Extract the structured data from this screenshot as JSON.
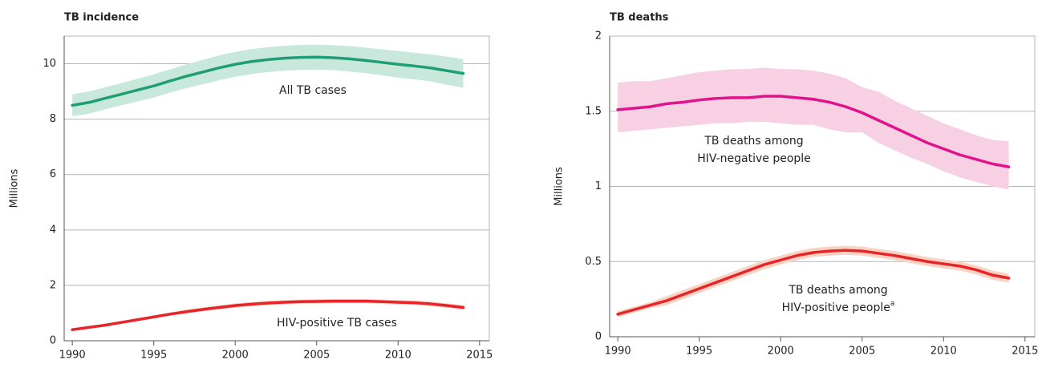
{
  "chart_data": [
    {
      "type": "line",
      "title": "TB incidence",
      "y_label": "Millions",
      "x": [
        1990,
        1991,
        1992,
        1993,
        1994,
        1995,
        1996,
        1997,
        1998,
        1999,
        2000,
        2001,
        2002,
        2003,
        2004,
        2005,
        2006,
        2007,
        2008,
        2009,
        2010,
        2011,
        2012,
        2013,
        2014
      ],
      "xlim": [
        1989.5,
        2015.6
      ],
      "xticks": [
        1990,
        1995,
        2000,
        2005,
        2010,
        2015
      ],
      "ylim": [
        0,
        11
      ],
      "yticks": [
        0,
        2,
        4,
        6,
        8,
        10
      ],
      "grid": true,
      "series": [
        {
          "name": "All TB cases",
          "color": "#1f9e76",
          "band_color": "#c9e8dc",
          "values": [
            8.5,
            8.6,
            8.75,
            8.9,
            9.05,
            9.2,
            9.38,
            9.55,
            9.7,
            9.85,
            9.98,
            10.08,
            10.15,
            10.2,
            10.23,
            10.24,
            10.22,
            10.18,
            10.12,
            10.05,
            9.98,
            9.92,
            9.85,
            9.75,
            9.65
          ],
          "upper": [
            8.9,
            9.0,
            9.15,
            9.3,
            9.46,
            9.62,
            9.8,
            9.98,
            10.14,
            10.3,
            10.43,
            10.53,
            10.6,
            10.65,
            10.68,
            10.69,
            10.67,
            10.64,
            10.58,
            10.52,
            10.46,
            10.4,
            10.34,
            10.26,
            10.17
          ],
          "lower": [
            8.1,
            8.2,
            8.35,
            8.5,
            8.64,
            8.78,
            8.96,
            9.12,
            9.26,
            9.4,
            9.53,
            9.63,
            9.7,
            9.75,
            9.78,
            9.79,
            9.77,
            9.72,
            9.66,
            9.58,
            9.5,
            9.44,
            9.36,
            9.24,
            9.13
          ]
        },
        {
          "name": "HIV-positive TB cases",
          "color": "#e8232a",
          "band_color": "#f9d3c2",
          "values": [
            0.4,
            0.48,
            0.56,
            0.66,
            0.76,
            0.86,
            0.96,
            1.05,
            1.13,
            1.2,
            1.27,
            1.32,
            1.36,
            1.39,
            1.41,
            1.42,
            1.43,
            1.43,
            1.43,
            1.41,
            1.39,
            1.37,
            1.33,
            1.27,
            1.2
          ],
          "upper": [
            0.44,
            0.52,
            0.61,
            0.71,
            0.81,
            0.92,
            1.02,
            1.12,
            1.2,
            1.28,
            1.35,
            1.4,
            1.44,
            1.47,
            1.49,
            1.5,
            1.51,
            1.51,
            1.51,
            1.49,
            1.47,
            1.45,
            1.41,
            1.35,
            1.28
          ],
          "lower": [
            0.36,
            0.44,
            0.51,
            0.61,
            0.71,
            0.8,
            0.9,
            0.98,
            1.06,
            1.12,
            1.19,
            1.24,
            1.28,
            1.31,
            1.33,
            1.34,
            1.35,
            1.35,
            1.35,
            1.33,
            1.31,
            1.29,
            1.25,
            1.19,
            1.12
          ]
        }
      ],
      "annotations": [
        [
          "All TB cases"
        ],
        [
          "HIV-positive TB cases"
        ]
      ]
    },
    {
      "type": "line",
      "title": "TB deaths",
      "y_label": "Millions",
      "x": [
        1990,
        1991,
        1992,
        1993,
        1994,
        1995,
        1996,
        1997,
        1998,
        1999,
        2000,
        2001,
        2002,
        2003,
        2004,
        2005,
        2006,
        2007,
        2008,
        2009,
        2010,
        2011,
        2012,
        2013,
        2014
      ],
      "xlim": [
        1989.5,
        2015.6
      ],
      "xticks": [
        1990,
        1995,
        2000,
        2005,
        2010,
        2015
      ],
      "ylim": [
        0,
        2
      ],
      "yticks": [
        0,
        0.5,
        1,
        1.5,
        2
      ],
      "grid": true,
      "series": [
        {
          "name": "TB deaths among HIV-negative people",
          "color": "#e0138c",
          "band_color": "#f8d0e3",
          "values": [
            1.51,
            1.52,
            1.53,
            1.55,
            1.56,
            1.575,
            1.585,
            1.59,
            1.59,
            1.6,
            1.6,
            1.59,
            1.58,
            1.56,
            1.53,
            1.49,
            1.44,
            1.39,
            1.34,
            1.29,
            1.25,
            1.21,
            1.18,
            1.15,
            1.13
          ],
          "upper": [
            1.69,
            1.7,
            1.7,
            1.72,
            1.74,
            1.76,
            1.77,
            1.78,
            1.78,
            1.79,
            1.78,
            1.78,
            1.77,
            1.75,
            1.72,
            1.66,
            1.63,
            1.57,
            1.52,
            1.47,
            1.42,
            1.38,
            1.34,
            1.31,
            1.3
          ],
          "lower": [
            1.36,
            1.37,
            1.38,
            1.39,
            1.4,
            1.41,
            1.42,
            1.42,
            1.43,
            1.43,
            1.42,
            1.41,
            1.41,
            1.38,
            1.36,
            1.36,
            1.29,
            1.24,
            1.19,
            1.15,
            1.1,
            1.06,
            1.03,
            1.0,
            0.98
          ]
        },
        {
          "name": "TB deaths among HIV-positive people",
          "color": "#e8232a",
          "band_color": "#f9d3c2",
          "values": [
            0.15,
            0.18,
            0.21,
            0.24,
            0.28,
            0.32,
            0.36,
            0.4,
            0.44,
            0.48,
            0.51,
            0.54,
            0.56,
            0.57,
            0.575,
            0.57,
            0.555,
            0.54,
            0.52,
            0.5,
            0.485,
            0.47,
            0.445,
            0.41,
            0.39
          ],
          "upper": [
            0.17,
            0.2,
            0.23,
            0.27,
            0.31,
            0.35,
            0.39,
            0.43,
            0.47,
            0.51,
            0.54,
            0.57,
            0.59,
            0.6,
            0.605,
            0.6,
            0.585,
            0.57,
            0.55,
            0.53,
            0.515,
            0.5,
            0.475,
            0.44,
            0.42
          ],
          "lower": [
            0.13,
            0.16,
            0.19,
            0.21,
            0.25,
            0.29,
            0.33,
            0.37,
            0.41,
            0.45,
            0.48,
            0.51,
            0.53,
            0.54,
            0.545,
            0.54,
            0.525,
            0.51,
            0.49,
            0.47,
            0.455,
            0.44,
            0.415,
            0.38,
            0.36
          ]
        }
      ],
      "annotations": [
        [
          "TB deaths among",
          "HIV-negative people"
        ],
        [
          "TB deaths among",
          "HIV-positive people"
        ]
      ],
      "footnote_mark": "a"
    }
  ]
}
